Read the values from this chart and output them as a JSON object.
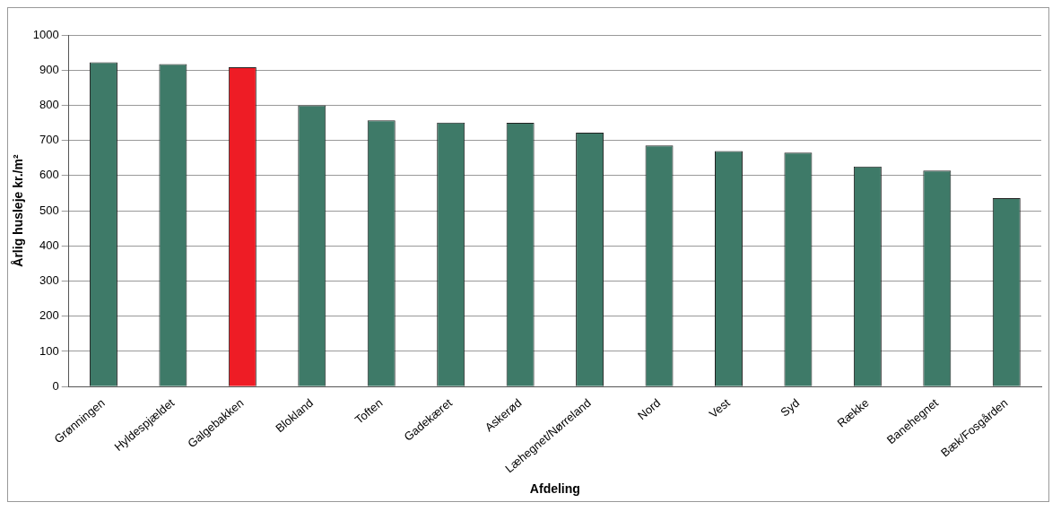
{
  "chart_data": {
    "type": "bar",
    "xlabel": "Afdeling",
    "ylabel": "Årlig husleje kr./m²",
    "categories": [
      "Grønningen",
      "Hyldespjældet",
      "Galgebakken",
      "Blokland",
      "Toften",
      "Gadekæret",
      "Askerød",
      "Læhegnet/Nørreland",
      "Nord",
      "Vest",
      "Syd",
      "Række",
      "Banehegnet",
      "Bæk/Fosgården"
    ],
    "values": [
      922,
      917,
      908,
      800,
      757,
      751,
      750,
      722,
      686,
      670,
      665,
      626,
      614,
      536
    ],
    "colors": [
      "#3e7a68",
      "#3e7a68",
      "#ee1c25",
      "#3e7a68",
      "#3e7a68",
      "#3e7a68",
      "#3e7a68",
      "#3e7a68",
      "#3e7a68",
      "#3e7a68",
      "#3e7a68",
      "#3e7a68",
      "#3e7a68",
      "#3e7a68"
    ],
    "ylim": [
      0,
      1000
    ],
    "yticks": [
      0,
      100,
      200,
      300,
      400,
      500,
      600,
      700,
      800,
      900,
      1000
    ],
    "grid": "y",
    "legend": false
  }
}
